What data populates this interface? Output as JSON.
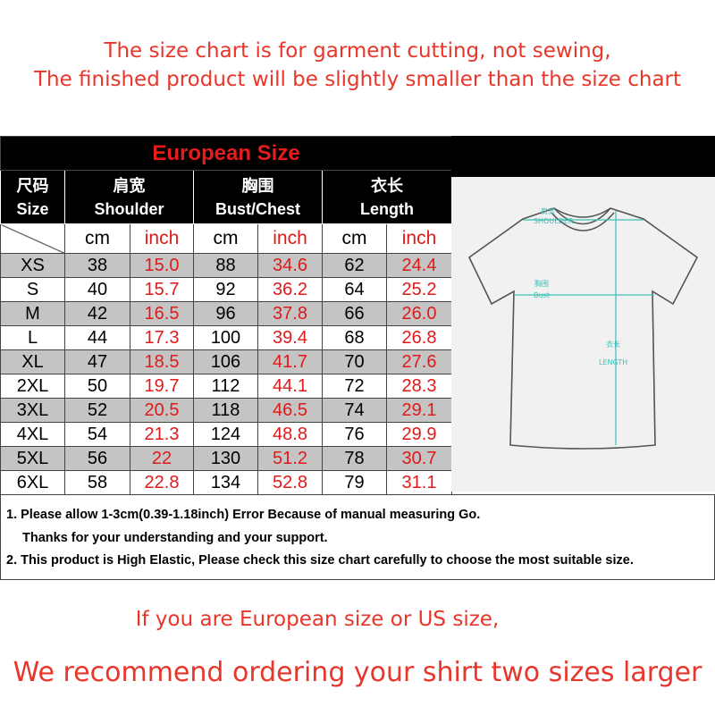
{
  "intro": {
    "line1": "The size chart is for garment cutting, not sewing,",
    "line2": "The finished product will be slightly smaller than the size chart"
  },
  "table": {
    "title": "European Size",
    "headers": [
      {
        "zh": "尺码",
        "en": "Size"
      },
      {
        "zh": "肩宽",
        "en": "Shoulder"
      },
      {
        "zh": "胸围",
        "en": "Bust/Chest"
      },
      {
        "zh": "衣长",
        "en": "Length"
      }
    ],
    "units": [
      "cm",
      "inch",
      "cm",
      "inch",
      "cm",
      "inch"
    ],
    "rows": [
      [
        "XS",
        "38",
        "15.0",
        "88",
        "34.6",
        "62",
        "24.4"
      ],
      [
        "S",
        "40",
        "15.7",
        "92",
        "36.2",
        "64",
        "25.2"
      ],
      [
        "M",
        "42",
        "16.5",
        "96",
        "37.8",
        "66",
        "26.0"
      ],
      [
        "L",
        "44",
        "17.3",
        "100",
        "39.4",
        "68",
        "26.8"
      ],
      [
        "XL",
        "47",
        "18.5",
        "106",
        "41.7",
        "70",
        "27.6"
      ],
      [
        "2XL",
        "50",
        "19.7",
        "112",
        "44.1",
        "72",
        "28.3"
      ],
      [
        "3XL",
        "52",
        "20.5",
        "118",
        "46.5",
        "74",
        "29.1"
      ],
      [
        "4XL",
        "54",
        "21.3",
        "124",
        "48.8",
        "76",
        "29.9"
      ],
      [
        "5XL",
        "56",
        "22",
        "130",
        "51.2",
        "78",
        "30.7"
      ],
      [
        "6XL",
        "58",
        "22.8",
        "134",
        "52.8",
        "79",
        "31.1"
      ]
    ]
  },
  "diagram": {
    "shoulder_zh": "肩宽",
    "shoulder": "SHOULDER",
    "bust_zh": "胸围",
    "bust": "Bust",
    "length_zh": "衣长",
    "length": "LENGTH",
    "line_color": "#3dbfb8"
  },
  "notes": {
    "n1": "1. Please allow 1-3cm(0.39-1.18inch) Error Because of manual measuring Go.",
    "n1b": "Thanks for your understanding  and your support.",
    "n2": "2. This product is High Elastic, Please check this size chart carefully to choose the most suitable size."
  },
  "bottom": {
    "line1": "If you are European size or US size,",
    "line2": "We recommend ordering your shirt two sizes larger"
  }
}
